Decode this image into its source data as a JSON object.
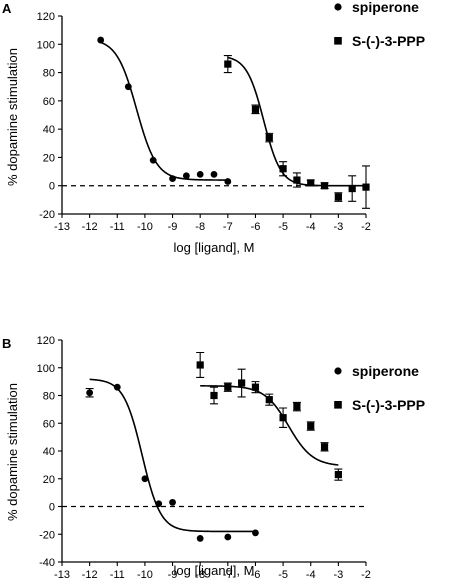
{
  "chart_data": [
    {
      "panel_label": "A",
      "type": "scatter",
      "xlabel": "log [ligand], M",
      "ylabel": "% dopamine stimulation",
      "xlim": [
        -13,
        -2
      ],
      "ylim": [
        -20,
        120
      ],
      "x_ticks": [
        -13,
        -12,
        -11,
        -10,
        -9,
        -8,
        -7,
        -6,
        -5,
        -4,
        -3,
        -2
      ],
      "y_ticks": [
        -20,
        0,
        20,
        40,
        60,
        80,
        100,
        120
      ],
      "legend_position": "top-right",
      "reference_line": {
        "y": 0,
        "style": "dashed"
      },
      "series": [
        {
          "name": "spiperone",
          "marker": "circle",
          "points": [
            {
              "x": -11.6,
              "y": 103
            },
            {
              "x": -10.6,
              "y": 70
            },
            {
              "x": -9.7,
              "y": 18
            },
            {
              "x": -9.0,
              "y": 5
            },
            {
              "x": -8.5,
              "y": 7
            },
            {
              "x": -8.0,
              "y": 8
            },
            {
              "x": -7.5,
              "y": 8
            },
            {
              "x": -7.0,
              "y": 3
            }
          ],
          "fit": {
            "top": 104,
            "bottom": 4,
            "log_ec50": -10.3,
            "hill": -1.2
          }
        },
        {
          "name": "S-(-)-3-PPP",
          "marker": "square",
          "points": [
            {
              "x": -7.0,
              "y": 86,
              "err": 6
            },
            {
              "x": -6.0,
              "y": 54,
              "err": 3
            },
            {
              "x": -5.5,
              "y": 34,
              "err": 3
            },
            {
              "x": -5.0,
              "y": 12,
              "err": 5
            },
            {
              "x": -4.5,
              "y": 4,
              "err": 5
            },
            {
              "x": -4.0,
              "y": 2,
              "err": 2
            },
            {
              "x": -3.5,
              "y": 0,
              "err": 2
            },
            {
              "x": -3.0,
              "y": -8,
              "err": 3
            },
            {
              "x": -2.5,
              "y": -2,
              "err": 9
            },
            {
              "x": -2.0,
              "y": -1,
              "err": 15
            }
          ],
          "fit": {
            "top": 92,
            "bottom": 0,
            "log_ec50": -5.7,
            "hill": -1.4
          }
        }
      ]
    },
    {
      "panel_label": "B",
      "type": "scatter",
      "xlabel": "log [ligand], M",
      "ylabel": "% dopamine stimulation",
      "xlim": [
        -13,
        -2
      ],
      "ylim": [
        -40,
        120
      ],
      "x_ticks": [
        -13,
        -12,
        -11,
        -10,
        -9,
        -8,
        -7,
        -6,
        -5,
        -4,
        -3,
        -2
      ],
      "y_ticks": [
        -40,
        -20,
        0,
        20,
        40,
        60,
        80,
        100,
        120
      ],
      "legend_position": "top-right",
      "reference_line": {
        "y": 0,
        "style": "dashed"
      },
      "series": [
        {
          "name": "spiperone",
          "marker": "circle",
          "points": [
            {
              "x": -12.0,
              "y": 82,
              "err": 3
            },
            {
              "x": -11.0,
              "y": 86
            },
            {
              "x": -10.0,
              "y": 20
            },
            {
              "x": -9.5,
              "y": 2
            },
            {
              "x": -9.0,
              "y": 3
            },
            {
              "x": -8.0,
              "y": -23
            },
            {
              "x": -7.0,
              "y": -22
            },
            {
              "x": -6.0,
              "y": -19
            }
          ],
          "fit": {
            "top": 92,
            "bottom": -18,
            "log_ec50": -10.1,
            "hill": -1.3,
            "x_range": [
              -12,
              -6
            ]
          }
        },
        {
          "name": "S-(-)-3-PPP",
          "marker": "square",
          "points": [
            {
              "x": -8.0,
              "y": 102,
              "err": 9
            },
            {
              "x": -7.5,
              "y": 80,
              "err": 6
            },
            {
              "x": -7.0,
              "y": 86,
              "err": 3
            },
            {
              "x": -6.5,
              "y": 89,
              "err": 10
            },
            {
              "x": -6.0,
              "y": 86,
              "err": 4
            },
            {
              "x": -5.5,
              "y": 77,
              "err": 4
            },
            {
              "x": -5.0,
              "y": 64,
              "err": 7
            },
            {
              "x": -4.5,
              "y": 72,
              "err": 3
            },
            {
              "x": -4.0,
              "y": 58,
              "err": 3
            },
            {
              "x": -3.5,
              "y": 43,
              "err": 3
            },
            {
              "x": -3.0,
              "y": 23,
              "err": 4
            }
          ],
          "fit": {
            "top": 87,
            "bottom": 29,
            "log_ec50": -4.8,
            "hill": -1.0,
            "x_range": [
              -8,
              -3
            ]
          }
        }
      ]
    }
  ]
}
